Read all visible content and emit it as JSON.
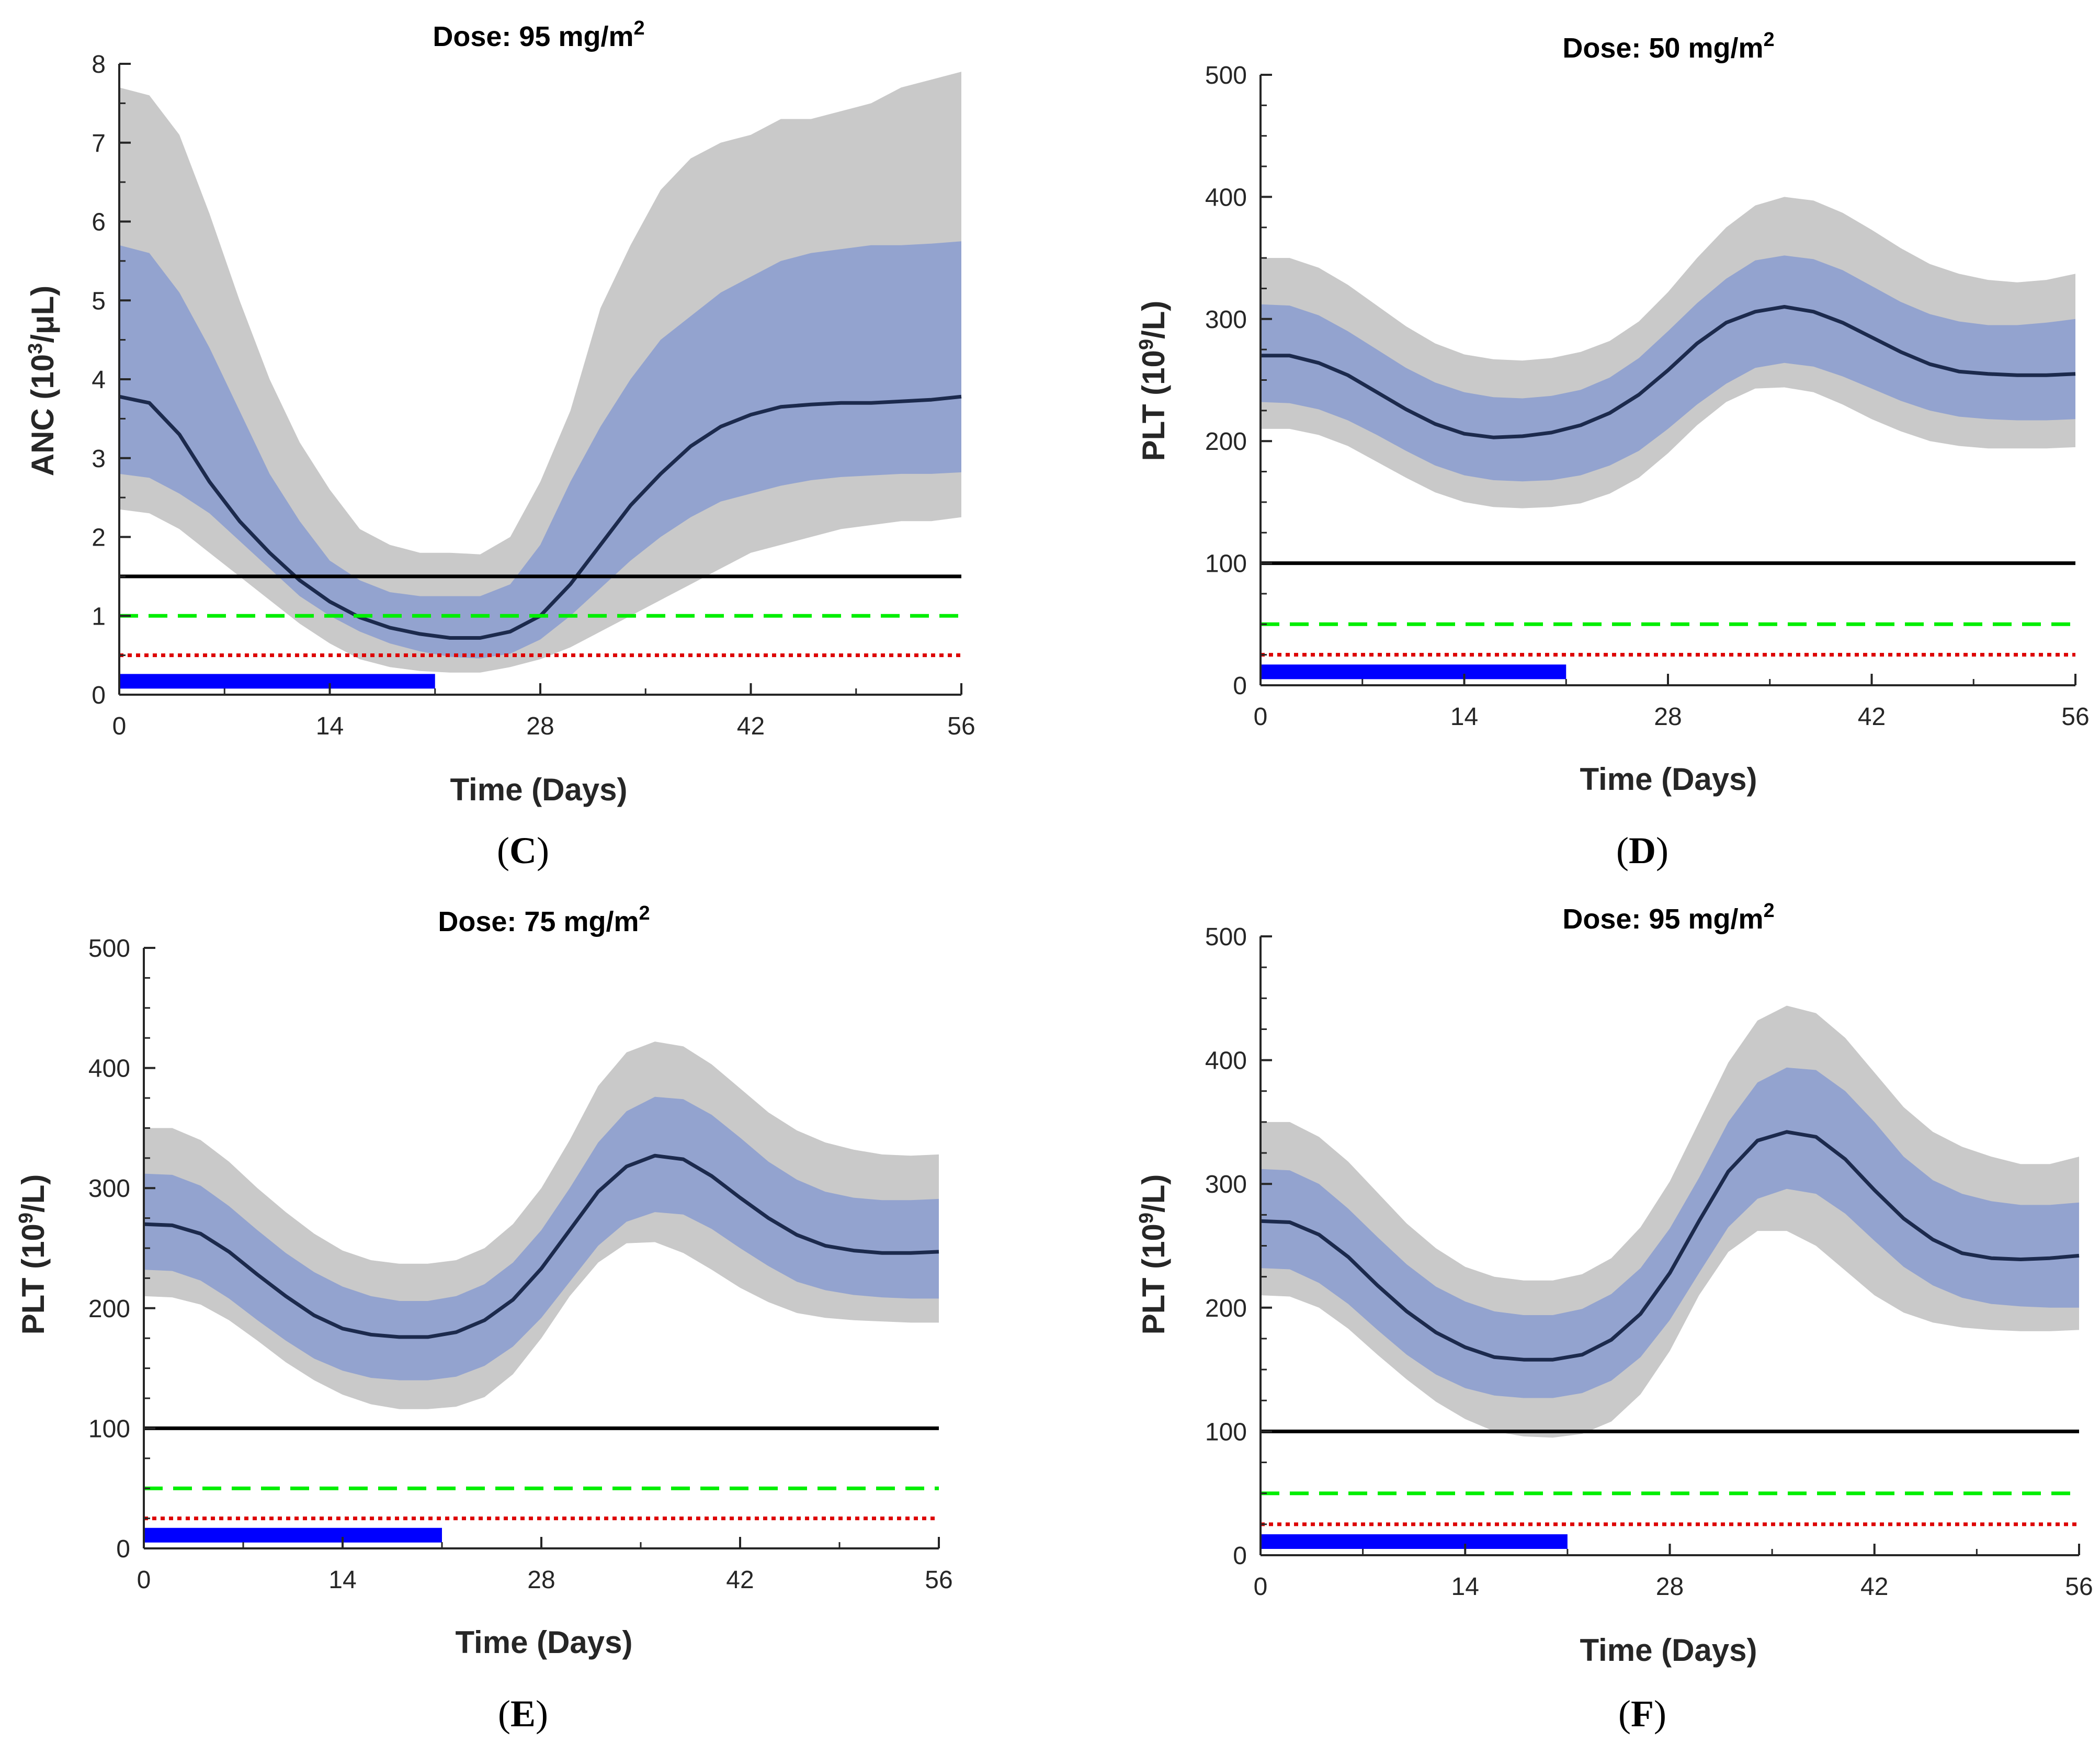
{
  "colors": {
    "outer_band": "#c9c9c9",
    "inner_band": "#93a3cf",
    "median": "#1c2a4d",
    "threshold_black": "#000000",
    "threshold_green": "#00ee00",
    "threshold_red": "#dd0000",
    "dosing_bar": "#0000ff",
    "axis": "#262626"
  },
  "chart_data": [
    {
      "type": "area",
      "panel_label": "C",
      "title": {
        "prefix": "Dose: 95 mg/m",
        "sup": "2"
      },
      "xlabel": "Time (Days)",
      "ylabel": {
        "prefix": "ANC (10",
        "sup": "3",
        "suffix": "/μL)"
      },
      "xlim": [
        0,
        56
      ],
      "ylim": [
        0,
        8
      ],
      "xticks": [
        0,
        14,
        28,
        42,
        56
      ],
      "yticks": [
        0,
        1,
        2,
        3,
        4,
        5,
        6,
        7,
        8
      ],
      "ytick_labels": [
        "0",
        "1",
        "2",
        "3",
        "4",
        "5",
        "6",
        "7",
        "8"
      ],
      "yminor_step": 0.5,
      "x": [
        0,
        2,
        4,
        6,
        8,
        10,
        12,
        14,
        16,
        18,
        20,
        22,
        24,
        26,
        28,
        30,
        32,
        34,
        36,
        38,
        40,
        42,
        44,
        46,
        48,
        50,
        52,
        54,
        56
      ],
      "series": [
        {
          "name": "90% interval upper",
          "values": [
            7.7,
            7.6,
            7.1,
            6.1,
            5.0,
            4.0,
            3.2,
            2.6,
            2.1,
            1.9,
            1.8,
            1.8,
            1.78,
            2.0,
            2.7,
            3.6,
            4.9,
            5.7,
            6.4,
            6.8,
            7.0,
            7.1,
            7.3,
            7.3,
            7.4,
            7.5,
            7.7,
            7.8,
            7.9
          ]
        },
        {
          "name": "90% interval lower",
          "values": [
            2.35,
            2.3,
            2.1,
            1.8,
            1.5,
            1.2,
            0.9,
            0.65,
            0.45,
            0.35,
            0.3,
            0.28,
            0.28,
            0.35,
            0.45,
            0.6,
            0.8,
            1.0,
            1.2,
            1.4,
            1.6,
            1.8,
            1.9,
            2.0,
            2.1,
            2.15,
            2.2,
            2.2,
            2.25
          ]
        },
        {
          "name": "50% interval upper",
          "values": [
            5.7,
            5.6,
            5.1,
            4.4,
            3.6,
            2.8,
            2.2,
            1.7,
            1.45,
            1.3,
            1.25,
            1.25,
            1.25,
            1.4,
            1.9,
            2.7,
            3.4,
            4.0,
            4.5,
            4.8,
            5.1,
            5.3,
            5.5,
            5.6,
            5.65,
            5.7,
            5.7,
            5.72,
            5.75
          ]
        },
        {
          "name": "50% interval lower",
          "values": [
            2.8,
            2.75,
            2.55,
            2.3,
            1.95,
            1.6,
            1.25,
            1.0,
            0.8,
            0.65,
            0.55,
            0.48,
            0.46,
            0.52,
            0.7,
            1.0,
            1.35,
            1.7,
            2.0,
            2.25,
            2.45,
            2.55,
            2.65,
            2.72,
            2.76,
            2.78,
            2.8,
            2.8,
            2.82
          ]
        },
        {
          "name": "median",
          "values": [
            3.78,
            3.7,
            3.3,
            2.7,
            2.2,
            1.8,
            1.45,
            1.18,
            0.98,
            0.85,
            0.77,
            0.72,
            0.72,
            0.8,
            1.0,
            1.4,
            1.9,
            2.4,
            2.8,
            3.15,
            3.4,
            3.55,
            3.65,
            3.68,
            3.7,
            3.7,
            3.72,
            3.74,
            3.78
          ]
        }
      ],
      "thresholds": [
        {
          "name": "solid black",
          "value": 1.5,
          "style": "solid"
        },
        {
          "name": "dashed green",
          "value": 1.0,
          "style": "dashed"
        },
        {
          "name": "dotted red",
          "value": 0.5,
          "style": "dotted"
        }
      ],
      "dosing": {
        "start": 0,
        "end": 21,
        "value": 0.17
      }
    },
    {
      "type": "area",
      "panel_label": "D",
      "title": {
        "prefix": "Dose: 50 mg/m",
        "sup": "2"
      },
      "xlabel": "Time (Days)",
      "ylabel": {
        "prefix": "PLT (10",
        "sup": "9",
        "suffix": "/L)"
      },
      "xlim": [
        0,
        56
      ],
      "ylim": [
        0,
        500
      ],
      "xticks": [
        0,
        14,
        28,
        42,
        56
      ],
      "yticks": [
        0,
        100,
        200,
        300,
        400,
        500
      ],
      "ytick_labels": [
        "0",
        "100",
        "200",
        "300",
        "400",
        "500"
      ],
      "yminor_step": 25,
      "x": [
        0,
        2,
        4,
        6,
        8,
        10,
        12,
        14,
        16,
        18,
        20,
        22,
        24,
        26,
        28,
        30,
        32,
        34,
        36,
        38,
        40,
        42,
        44,
        46,
        48,
        50,
        52,
        54,
        56
      ],
      "series": [
        {
          "name": "90% interval upper",
          "values": [
            350,
            350,
            342,
            328,
            311,
            294,
            280,
            271,
            267,
            266,
            268,
            273,
            282,
            298,
            322,
            350,
            375,
            393,
            400,
            397,
            387,
            373,
            358,
            345,
            337,
            332,
            330,
            332,
            337
          ]
        },
        {
          "name": "90% interval lower",
          "values": [
            210,
            210,
            205,
            196,
            183,
            170,
            158,
            150,
            146,
            145,
            146,
            149,
            157,
            170,
            190,
            213,
            232,
            243,
            244,
            240,
            230,
            218,
            208,
            200,
            196,
            194,
            194,
            194,
            195
          ]
        },
        {
          "name": "50% interval upper",
          "values": [
            312,
            311,
            303,
            290,
            275,
            260,
            248,
            240,
            236,
            235,
            237,
            242,
            252,
            268,
            290,
            313,
            333,
            348,
            352,
            349,
            340,
            327,
            314,
            304,
            298,
            295,
            295,
            297,
            300
          ]
        },
        {
          "name": "50% interval lower",
          "values": [
            232,
            231,
            226,
            217,
            205,
            192,
            180,
            172,
            168,
            167,
            168,
            172,
            180,
            192,
            210,
            230,
            247,
            260,
            264,
            261,
            253,
            243,
            233,
            225,
            220,
            218,
            217,
            217,
            218
          ]
        },
        {
          "name": "median",
          "values": [
            270,
            270,
            264,
            254,
            240,
            226,
            214,
            206,
            203,
            204,
            207,
            213,
            223,
            238,
            258,
            280,
            297,
            306,
            310,
            306,
            297,
            285,
            273,
            263,
            257,
            255,
            254,
            254,
            255
          ]
        }
      ],
      "thresholds": [
        {
          "name": "solid black",
          "value": 100,
          "style": "solid"
        },
        {
          "name": "dashed green",
          "value": 50,
          "style": "dashed"
        },
        {
          "name": "dotted red",
          "value": 25,
          "style": "dotted"
        }
      ],
      "dosing": {
        "start": 0,
        "end": 21,
        "value": 11
      }
    },
    {
      "type": "area",
      "panel_label": "E",
      "title": {
        "prefix": "Dose: 75 mg/m",
        "sup": "2"
      },
      "xlabel": "Time (Days)",
      "ylabel": {
        "prefix": "PLT (10",
        "sup": "9",
        "suffix": "/L)"
      },
      "xlim": [
        0,
        56
      ],
      "ylim": [
        0,
        500
      ],
      "xticks": [
        0,
        14,
        28,
        42,
        56
      ],
      "yticks": [
        0,
        100,
        200,
        300,
        400,
        500
      ],
      "ytick_labels": [
        "0",
        "100",
        "200",
        "300",
        "400",
        "500"
      ],
      "yminor_step": 25,
      "x": [
        0,
        2,
        4,
        6,
        8,
        10,
        12,
        14,
        16,
        18,
        20,
        22,
        24,
        26,
        28,
        30,
        32,
        34,
        36,
        38,
        40,
        42,
        44,
        46,
        48,
        50,
        52,
        54,
        56
      ],
      "series": [
        {
          "name": "90% interval upper",
          "values": [
            350,
            350,
            340,
            322,
            300,
            280,
            262,
            248,
            240,
            237,
            237,
            240,
            250,
            270,
            300,
            340,
            385,
            413,
            422,
            418,
            403,
            383,
            363,
            348,
            338,
            332,
            328,
            327,
            328
          ]
        },
        {
          "name": "90% interval lower",
          "values": [
            210,
            209,
            203,
            190,
            173,
            155,
            140,
            128,
            120,
            116,
            116,
            118,
            126,
            145,
            175,
            210,
            238,
            254,
            255,
            246,
            232,
            217,
            205,
            196,
            192,
            190,
            189,
            188,
            188
          ]
        },
        {
          "name": "50% interval upper",
          "values": [
            312,
            311,
            302,
            285,
            265,
            246,
            230,
            218,
            210,
            206,
            206,
            210,
            220,
            238,
            265,
            300,
            338,
            364,
            376,
            374,
            361,
            342,
            322,
            307,
            297,
            292,
            290,
            290,
            291
          ]
        },
        {
          "name": "50% interval lower",
          "values": [
            232,
            231,
            223,
            208,
            190,
            173,
            158,
            148,
            142,
            140,
            140,
            143,
            152,
            168,
            192,
            222,
            252,
            272,
            280,
            278,
            266,
            250,
            235,
            222,
            215,
            211,
            209,
            208,
            208
          ]
        },
        {
          "name": "median",
          "values": [
            270,
            269,
            262,
            247,
            228,
            210,
            194,
            183,
            178,
            176,
            176,
            180,
            190,
            207,
            233,
            265,
            297,
            318,
            327,
            324,
            310,
            292,
            275,
            261,
            252,
            248,
            246,
            246,
            247
          ]
        }
      ],
      "thresholds": [
        {
          "name": "solid black",
          "value": 100,
          "style": "solid"
        },
        {
          "name": "dashed green",
          "value": 50,
          "style": "dashed"
        },
        {
          "name": "dotted red",
          "value": 25,
          "style": "dotted"
        }
      ],
      "dosing": {
        "start": 0,
        "end": 21,
        "value": 11
      }
    },
    {
      "type": "area",
      "panel_label": "F",
      "title": {
        "prefix": "Dose: 95 mg/m",
        "sup": "2"
      },
      "xlabel": "Time (Days)",
      "ylabel": {
        "prefix": "PLT (10",
        "sup": "9",
        "suffix": "/L)"
      },
      "xlim": [
        0,
        56
      ],
      "ylim": [
        0,
        500
      ],
      "xticks": [
        0,
        14,
        28,
        42,
        56
      ],
      "yticks": [
        0,
        100,
        200,
        300,
        400,
        500
      ],
      "ytick_labels": [
        "0",
        "100",
        "200",
        "300",
        "400",
        "500"
      ],
      "yminor_step": 25,
      "x": [
        0,
        2,
        4,
        6,
        8,
        10,
        12,
        14,
        16,
        18,
        20,
        22,
        24,
        26,
        28,
        30,
        32,
        34,
        36,
        38,
        40,
        42,
        44,
        46,
        48,
        50,
        52,
        54,
        56
      ],
      "series": [
        {
          "name": "90% interval upper",
          "values": [
            350,
            350,
            338,
            318,
            293,
            268,
            248,
            233,
            225,
            222,
            222,
            227,
            240,
            265,
            302,
            350,
            398,
            432,
            444,
            438,
            418,
            390,
            362,
            342,
            330,
            322,
            316,
            316,
            322
          ]
        },
        {
          "name": "90% interval lower",
          "values": [
            210,
            209,
            200,
            183,
            162,
            142,
            124,
            110,
            100,
            96,
            95,
            98,
            108,
            130,
            165,
            210,
            245,
            262,
            262,
            250,
            230,
            210,
            196,
            188,
            184,
            182,
            181,
            181,
            182
          ]
        },
        {
          "name": "50% interval upper",
          "values": [
            312,
            311,
            300,
            280,
            257,
            235,
            217,
            205,
            197,
            194,
            194,
            199,
            211,
            232,
            264,
            305,
            350,
            382,
            394,
            392,
            375,
            350,
            322,
            303,
            292,
            286,
            283,
            283,
            285
          ]
        },
        {
          "name": "50% interval lower",
          "values": [
            232,
            231,
            220,
            203,
            182,
            162,
            146,
            135,
            129,
            127,
            127,
            131,
            141,
            160,
            190,
            228,
            265,
            288,
            296,
            292,
            276,
            254,
            233,
            218,
            208,
            203,
            201,
            200,
            200
          ]
        },
        {
          "name": "median",
          "values": [
            270,
            269,
            259,
            241,
            218,
            197,
            180,
            168,
            160,
            158,
            158,
            162,
            174,
            195,
            228,
            270,
            310,
            335,
            342,
            338,
            320,
            295,
            272,
            255,
            244,
            240,
            239,
            240,
            242
          ]
        }
      ],
      "thresholds": [
        {
          "name": "solid black",
          "value": 100,
          "style": "solid"
        },
        {
          "name": "dashed green",
          "value": 50,
          "style": "dashed"
        },
        {
          "name": "dotted red",
          "value": 25,
          "style": "dotted"
        }
      ],
      "dosing": {
        "start": 0,
        "end": 21,
        "value": 11
      }
    }
  ]
}
